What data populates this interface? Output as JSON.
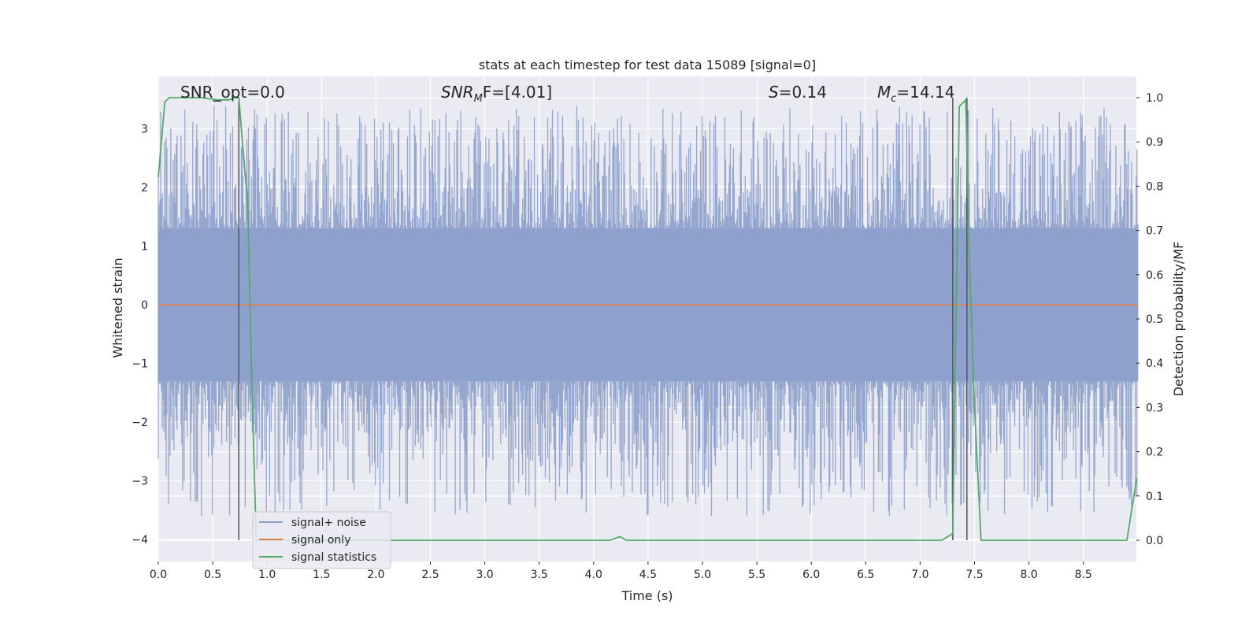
{
  "chart_data": {
    "type": "line",
    "title": "stats at each timestep for test data 15089 [signal=0]",
    "xlabel": "Time (s)",
    "ylabel": "Whitened strain",
    "y2label": "Detection probability/MF",
    "xlim": [
      0.0,
      9.0
    ],
    "ylim": [
      -4.25,
      3.6
    ],
    "y2lim": [
      -0.05,
      1.035
    ],
    "x_ticks": [
      "0.0",
      "0.5",
      "1.0",
      "1.5",
      "2.0",
      "2.5",
      "3.0",
      "3.5",
      "4.0",
      "4.5",
      "5.0",
      "5.5",
      "6.0",
      "6.5",
      "7.0",
      "7.5",
      "8.0",
      "8.5"
    ],
    "y_ticks": [
      "3",
      "2",
      "1",
      "0",
      "−1",
      "−2",
      "−3",
      "−4"
    ],
    "y2_ticks": [
      "1.0",
      "0.9",
      "0.8",
      "0.7",
      "0.6",
      "0.5",
      "0.4",
      "0.3",
      "0.2",
      "0.1",
      "0.0"
    ],
    "grid": true,
    "legend_position": "bottom-left",
    "annotations": {
      "snr_opt": "SNR_opt=0.0",
      "snr_mf_prefix": "SNR",
      "snr_mf_sub": "M",
      "snr_mf_suffix": "F=[4.01]",
      "s_prefix": "S",
      "s_suffix": "=0.14",
      "mc_prefix": "M",
      "mc_sub": "c",
      "mc_suffix": "=14.14"
    },
    "colors": {
      "noise": "#8da0cb",
      "signal": "#dd8452",
      "stats": "#55a868",
      "vlines": "#555555",
      "background": "#eaeaf2"
    },
    "series": [
      {
        "name": "signal+ noise",
        "type": "noise-envelope",
        "envelope_upper": 1.3,
        "envelope_lower": -1.3,
        "peak_max": 3.4,
        "peak_min": -3.6
      },
      {
        "name": "signal only",
        "x": [
          0.0,
          9.0
        ],
        "y": [
          0.0,
          0.0
        ]
      },
      {
        "name": "signal statistics",
        "axis": "right",
        "x": [
          0.0,
          0.06,
          0.1,
          0.2,
          0.4,
          0.55,
          0.65,
          0.7,
          0.74,
          0.8,
          0.82,
          0.86,
          0.9,
          1.0,
          2.0,
          3.0,
          4.0,
          4.15,
          4.24,
          4.3,
          4.5,
          5.0,
          6.0,
          7.0,
          7.2,
          7.3,
          7.32,
          7.36,
          7.42,
          7.45,
          7.5,
          7.56,
          7.6,
          8.0,
          8.5,
          8.9,
          8.99
        ],
        "y": [
          0.82,
          0.99,
          1.0,
          1.0,
          1.0,
          0.995,
          0.995,
          1.0,
          1.0,
          0.82,
          0.78,
          0.35,
          0.0,
          0.0,
          0.0,
          0.0,
          0.0,
          0.0,
          0.008,
          0.0,
          0.0,
          0.0,
          0.0,
          0.0,
          0.0,
          0.015,
          0.35,
          0.98,
          0.995,
          0.65,
          0.3,
          0.0,
          0.0,
          0.0,
          0.0,
          0.0,
          0.14
        ]
      }
    ],
    "vlines_x": [
      0.74,
      7.3,
      7.43
    ]
  }
}
